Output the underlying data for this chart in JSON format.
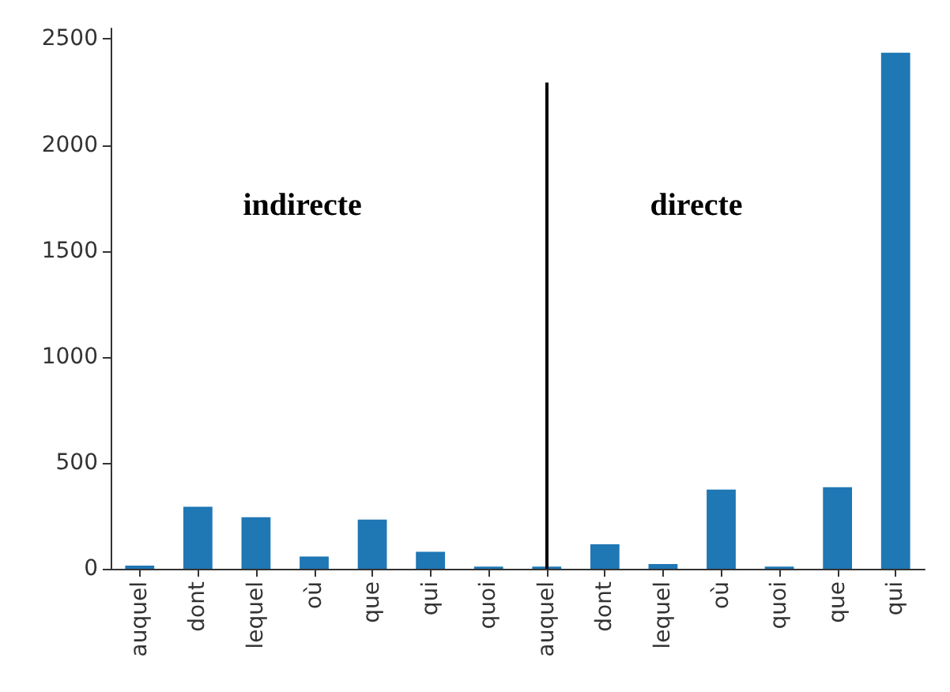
{
  "chart_data": {
    "type": "bar",
    "categories": [
      "auquel",
      "dont",
      "lequel",
      "où",
      "que",
      "qui",
      "quoi",
      "auquel",
      "dont",
      "lequel",
      "où",
      "quoi",
      "que",
      "qui"
    ],
    "values": [
      15,
      293,
      243,
      58,
      232,
      80,
      10,
      10,
      116,
      22,
      374,
      10,
      385,
      2435
    ],
    "color": "#1f77b4",
    "ylim": [
      0,
      2550
    ],
    "yticks": [
      0,
      500,
      1000,
      1500,
      2000,
      2500
    ],
    "annotations": [
      "indirecte",
      "directe"
    ]
  }
}
